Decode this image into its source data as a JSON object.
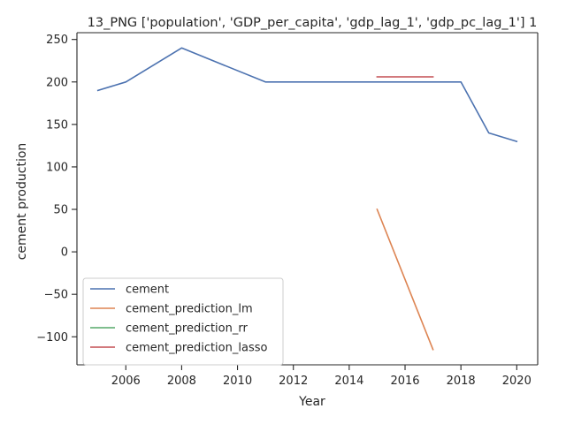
{
  "chart_data": {
    "type": "line",
    "title": "13_PNG ['population', 'GDP_per_capita', 'gdp_lag_1', 'gdp_pc_lag_1'] 1",
    "xlabel": "Year",
    "ylabel": "cement production",
    "xlim": [
      2004.25,
      2020.75
    ],
    "ylim": [
      -133,
      258
    ],
    "x_ticks": [
      2006,
      2008,
      2010,
      2012,
      2014,
      2016,
      2018,
      2020
    ],
    "y_ticks": [
      -100,
      -50,
      0,
      50,
      100,
      150,
      200,
      250
    ],
    "x_tick_labels": [
      "2006",
      "2008",
      "2010",
      "2012",
      "2014",
      "2016",
      "2018",
      "2020"
    ],
    "y_tick_labels": [
      "−100",
      "−50",
      "0",
      "50",
      "100",
      "150",
      "200",
      "250"
    ],
    "grid": false,
    "legend_position": "lower-left",
    "series": [
      {
        "name": "cement",
        "color": "#4c72b0",
        "points": [
          [
            2005,
            190
          ],
          [
            2006,
            200
          ],
          [
            2008,
            240
          ],
          [
            2011,
            200
          ],
          [
            2018,
            200
          ],
          [
            2019,
            140
          ],
          [
            2020,
            130
          ]
        ]
      },
      {
        "name": "cement_prediction_lm",
        "color": "#dd8452",
        "points": [
          [
            2015,
            50
          ],
          [
            2017,
            -115
          ]
        ]
      },
      {
        "name": "cement_prediction_rr",
        "color": "#55a868",
        "points": []
      },
      {
        "name": "cement_prediction_lasso",
        "color": "#c44e52",
        "points": [
          [
            2015,
            206
          ],
          [
            2017,
            206
          ]
        ]
      }
    ]
  }
}
